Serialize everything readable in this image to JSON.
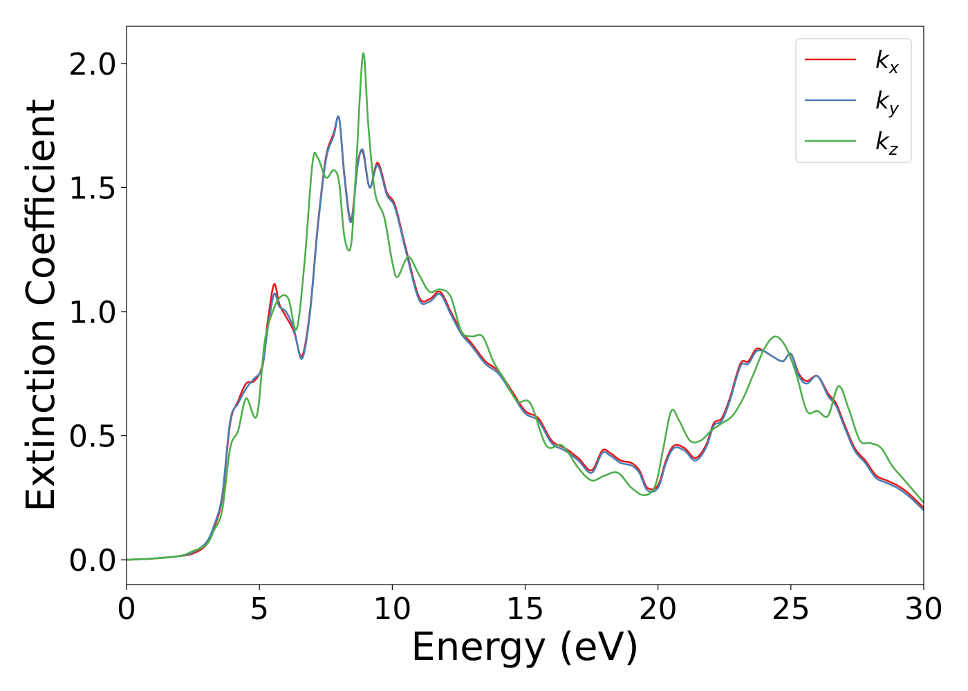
{
  "chart_data": {
    "type": "line",
    "xlabel": "Energy (eV)",
    "ylabel": "Extinction Coefficient",
    "xlim": [
      0,
      30
    ],
    "ylim": [
      -0.1,
      2.15
    ],
    "xticks": [
      "0",
      "5",
      "10",
      "15",
      "20",
      "25",
      "30"
    ],
    "yticks": [
      "0.0",
      "0.5",
      "1.0",
      "1.5",
      "2.0"
    ],
    "grid": false,
    "legend_position": "top-right",
    "series": [
      {
        "name": "kx",
        "legend_base": "k",
        "legend_sub": "x",
        "color": "#e41a1c",
        "x": [
          0,
          1,
          2,
          2.5,
          3,
          3.3,
          3.6,
          3.9,
          4.2,
          4.5,
          4.8,
          5.1,
          5.3,
          5.55,
          5.75,
          6,
          6.3,
          6.6,
          6.9,
          7.2,
          7.5,
          7.8,
          8.0,
          8.2,
          8.45,
          8.7,
          8.9,
          9.15,
          9.45,
          9.8,
          10.1,
          10.5,
          11,
          11.4,
          11.8,
          12.2,
          12.6,
          13,
          13.5,
          14,
          14.5,
          15,
          15.5,
          16,
          16.5,
          17,
          17.5,
          17.9,
          18.2,
          18.6,
          19,
          19.3,
          19.6,
          20,
          20.3,
          20.6,
          21,
          21.4,
          21.8,
          22.1,
          22.4,
          22.7,
          23.1,
          23.4,
          23.7,
          24,
          24.3,
          24.7,
          25,
          25.3,
          25.6,
          26,
          26.4,
          26.7,
          27,
          27.4,
          27.8,
          28.2,
          28.6,
          29,
          29.4,
          29.8,
          30
        ],
        "y": [
          0,
          0.005,
          0.015,
          0.025,
          0.06,
          0.13,
          0.25,
          0.55,
          0.64,
          0.71,
          0.72,
          0.78,
          0.95,
          1.11,
          1.03,
          0.98,
          0.92,
          0.82,
          1.0,
          1.35,
          1.62,
          1.72,
          1.78,
          1.55,
          1.37,
          1.6,
          1.64,
          1.5,
          1.6,
          1.48,
          1.43,
          1.26,
          1.06,
          1.05,
          1.08,
          1.0,
          0.92,
          0.87,
          0.8,
          0.76,
          0.68,
          0.6,
          0.57,
          0.48,
          0.45,
          0.41,
          0.36,
          0.44,
          0.43,
          0.4,
          0.39,
          0.36,
          0.29,
          0.3,
          0.4,
          0.46,
          0.45,
          0.41,
          0.46,
          0.55,
          0.57,
          0.65,
          0.79,
          0.8,
          0.85,
          0.84,
          0.82,
          0.8,
          0.83,
          0.75,
          0.72,
          0.74,
          0.67,
          0.63,
          0.55,
          0.45,
          0.4,
          0.34,
          0.32,
          0.3,
          0.27,
          0.23,
          0.21
        ]
      },
      {
        "name": "ky",
        "legend_base": "k",
        "legend_sub": "y",
        "color": "#4b7db4",
        "x": [
          0,
          1,
          2,
          2.5,
          3,
          3.3,
          3.6,
          3.9,
          4.2,
          4.5,
          4.8,
          5.1,
          5.3,
          5.55,
          5.75,
          6,
          6.3,
          6.6,
          6.9,
          7.2,
          7.5,
          7.8,
          8.0,
          8.2,
          8.45,
          8.7,
          8.9,
          9.15,
          9.45,
          9.8,
          10.1,
          10.5,
          11,
          11.4,
          11.8,
          12.2,
          12.6,
          13,
          13.5,
          14,
          14.5,
          15,
          15.5,
          16,
          16.5,
          17,
          17.5,
          17.9,
          18.2,
          18.6,
          19,
          19.3,
          19.6,
          20,
          20.3,
          20.6,
          21,
          21.4,
          21.8,
          22.1,
          22.4,
          22.7,
          23.1,
          23.4,
          23.7,
          24,
          24.3,
          24.7,
          25,
          25.3,
          25.6,
          26,
          26.4,
          26.7,
          27,
          27.4,
          27.8,
          28.2,
          28.6,
          29,
          29.4,
          29.8,
          30
        ],
        "y": [
          0,
          0.005,
          0.015,
          0.03,
          0.07,
          0.14,
          0.26,
          0.56,
          0.63,
          0.69,
          0.73,
          0.77,
          0.92,
          1.07,
          1.02,
          1.0,
          0.93,
          0.81,
          0.99,
          1.34,
          1.61,
          1.71,
          1.78,
          1.54,
          1.36,
          1.59,
          1.65,
          1.5,
          1.59,
          1.47,
          1.42,
          1.25,
          1.05,
          1.04,
          1.07,
          0.99,
          0.91,
          0.86,
          0.79,
          0.75,
          0.67,
          0.59,
          0.56,
          0.47,
          0.44,
          0.4,
          0.35,
          0.43,
          0.42,
          0.39,
          0.38,
          0.35,
          0.28,
          0.29,
          0.39,
          0.45,
          0.44,
          0.4,
          0.45,
          0.54,
          0.56,
          0.64,
          0.78,
          0.79,
          0.84,
          0.84,
          0.82,
          0.8,
          0.83,
          0.74,
          0.71,
          0.74,
          0.66,
          0.62,
          0.54,
          0.44,
          0.39,
          0.33,
          0.31,
          0.29,
          0.26,
          0.22,
          0.2
        ]
      },
      {
        "name": "kz",
        "legend_base": "k",
        "legend_sub": "z",
        "color": "#4daf4a",
        "x": [
          0,
          1,
          2,
          2.5,
          3,
          3.3,
          3.6,
          3.9,
          4.2,
          4.5,
          4.9,
          5.2,
          5.5,
          5.8,
          6.1,
          6.4,
          6.7,
          7.0,
          7.2,
          7.5,
          7.8,
          8.0,
          8.2,
          8.45,
          8.65,
          8.9,
          9.1,
          9.35,
          9.7,
          10.0,
          10.2,
          10.6,
          11.0,
          11.4,
          11.8,
          12.2,
          12.6,
          13.0,
          13.4,
          13.8,
          14.2,
          14.7,
          15.2,
          15.8,
          16.4,
          17.0,
          17.5,
          18.0,
          18.5,
          19.0,
          19.5,
          19.9,
          20.2,
          20.5,
          20.8,
          21.2,
          21.6,
          22.0,
          22.4,
          22.8,
          23.2,
          23.6,
          24.0,
          24.4,
          24.8,
          25.2,
          25.6,
          26.0,
          26.4,
          26.8,
          27.2,
          27.6,
          28.0,
          28.4,
          28.8,
          29.2,
          29.6,
          30
        ],
        "y": [
          0,
          0.005,
          0.015,
          0.035,
          0.06,
          0.12,
          0.2,
          0.45,
          0.52,
          0.65,
          0.58,
          0.88,
          1.0,
          1.06,
          1.05,
          0.93,
          1.2,
          1.6,
          1.62,
          1.54,
          1.57,
          1.52,
          1.3,
          1.27,
          1.6,
          2.04,
          1.75,
          1.48,
          1.38,
          1.2,
          1.14,
          1.22,
          1.15,
          1.08,
          1.09,
          1.06,
          0.92,
          0.9,
          0.9,
          0.8,
          0.73,
          0.64,
          0.63,
          0.46,
          0.46,
          0.37,
          0.32,
          0.34,
          0.35,
          0.29,
          0.26,
          0.3,
          0.45,
          0.6,
          0.56,
          0.48,
          0.48,
          0.52,
          0.55,
          0.58,
          0.65,
          0.75,
          0.85,
          0.9,
          0.86,
          0.75,
          0.6,
          0.6,
          0.58,
          0.7,
          0.6,
          0.48,
          0.47,
          0.45,
          0.38,
          0.33,
          0.28,
          0.23
        ]
      }
    ]
  }
}
